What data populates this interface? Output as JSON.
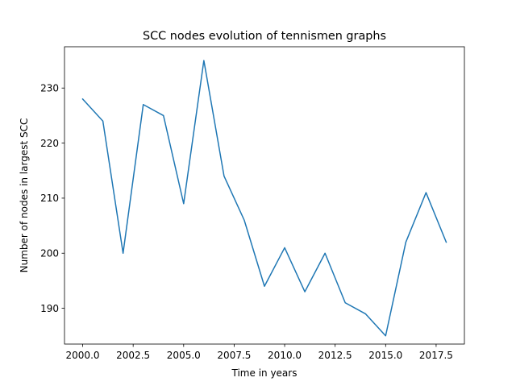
{
  "chart_data": {
    "type": "line",
    "title": "SCC nodes evolution of tennismen graphs",
    "xlabel": "Time in years",
    "ylabel": "Number of nodes in largest SCC",
    "x": [
      2000,
      2001,
      2002,
      2003,
      2004,
      2005,
      2006,
      2007,
      2008,
      2009,
      2010,
      2011,
      2012,
      2013,
      2014,
      2015,
      2016,
      2017,
      2018
    ],
    "series": [
      {
        "values": [
          228,
          224,
          200,
          227,
          225,
          209,
          235,
          214,
          206,
          194,
          201,
          193,
          200,
          191,
          189,
          185,
          202,
          211,
          202
        ],
        "color": "#1f77b4"
      }
    ],
    "xlim": [
      1999.1,
      2018.9
    ],
    "ylim": [
      183.5,
      237.5
    ],
    "xticks": [
      2000.0,
      2002.5,
      2005.0,
      2007.5,
      2010.0,
      2012.5,
      2015.0,
      2017.5
    ],
    "xtick_labels": [
      "2000.0",
      "2002.5",
      "2005.0",
      "2007.5",
      "2010.0",
      "2012.5",
      "2015.0",
      "2017.5"
    ],
    "yticks": [
      190,
      200,
      210,
      220,
      230
    ],
    "ytick_labels": [
      "190",
      "200",
      "210",
      "220",
      "230"
    ],
    "grid": false,
    "legend": "none"
  }
}
